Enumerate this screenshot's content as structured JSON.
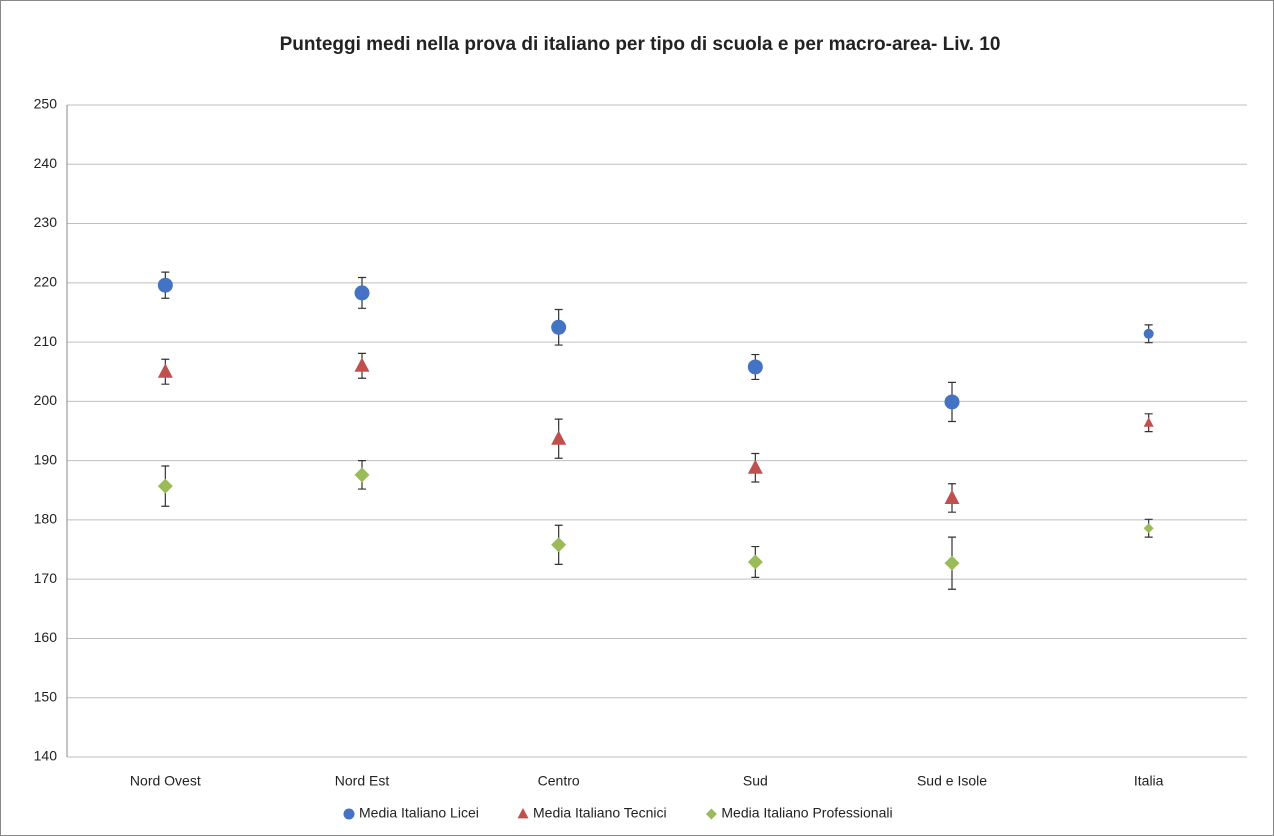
{
  "chart_data": {
    "type": "errorbar",
    "title": "Punteggi medi nella prova di italiano per tipo di scuola e per  macro-area- Liv. 10",
    "categories": [
      "Nord Ovest",
      "Nord Est",
      "Centro",
      "Sud",
      "Sud e Isole",
      "Italia"
    ],
    "series": [
      {
        "name": "Media Italiano Licei",
        "color": "#4472c4",
        "marker": "circle",
        "values": [
          219.6,
          218.3,
          212.5,
          205.8,
          199.9,
          211.4
        ],
        "errors": [
          2.2,
          2.6,
          3.0,
          2.1,
          3.3,
          1.5
        ]
      },
      {
        "name": "Media Italiano Tecnici",
        "color": "#c0504d",
        "marker": "triangle",
        "values": [
          205.0,
          206.0,
          193.7,
          188.8,
          183.7,
          196.4
        ],
        "errors": [
          2.1,
          2.1,
          3.3,
          2.4,
          2.4,
          1.5
        ]
      },
      {
        "name": "Media Italiano Professionali",
        "color": "#9bbb59",
        "marker": "diamond",
        "values": [
          185.7,
          187.6,
          175.8,
          172.9,
          172.7,
          178.6
        ],
        "errors": [
          3.4,
          2.4,
          3.3,
          2.6,
          4.4,
          1.5
        ]
      }
    ],
    "ylim": [
      140,
      250
    ],
    "yticks": [
      140,
      150,
      160,
      170,
      180,
      190,
      200,
      210,
      220,
      230,
      240,
      250
    ],
    "grid": true,
    "legend": "bottom"
  }
}
